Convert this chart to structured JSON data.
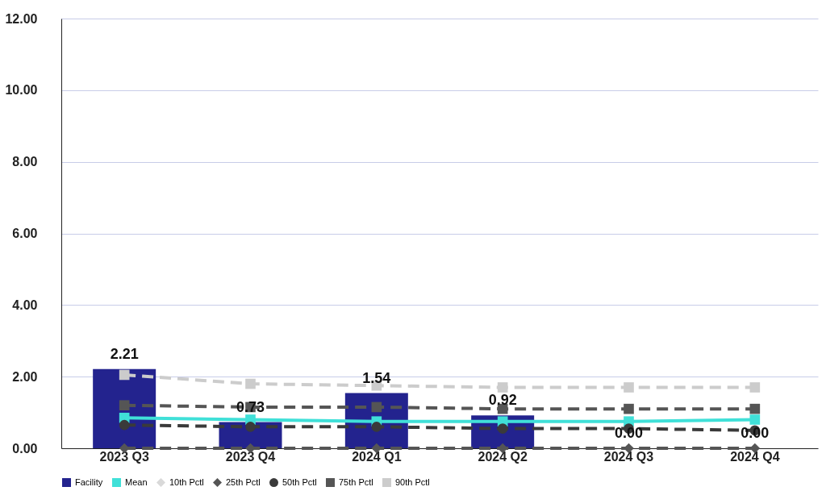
{
  "chart_data": {
    "type": "bar",
    "categories": [
      "2023 Q3",
      "2023 Q4",
      "2024 Q1",
      "2024 Q2",
      "2024 Q3",
      "2024 Q4"
    ],
    "series": [
      {
        "name": "Facility",
        "color": "#23238e",
        "values": [
          2.21,
          0.73,
          1.54,
          0.92,
          0.0,
          0.0
        ]
      },
      {
        "name": "Mean",
        "type": "line",
        "color": "#40e0d8",
        "marker": "square",
        "line_style": "solid",
        "values": [
          0.85,
          0.8,
          0.75,
          0.75,
          0.75,
          0.8
        ]
      },
      {
        "name": "10th Pctl",
        "type": "line",
        "color": "#d9d9d9",
        "marker": "diamond",
        "values": [
          null,
          null,
          null,
          null,
          null,
          null
        ]
      },
      {
        "name": "25th Pctl",
        "type": "line",
        "color": "#555555",
        "marker": "diamond",
        "line_style": "dashed",
        "values": [
          0,
          0,
          0,
          0,
          0,
          0
        ]
      },
      {
        "name": "50th Pctl",
        "type": "line",
        "color": "#3a3a3a",
        "marker": "circle",
        "line_style": "dashed",
        "values": [
          0.65,
          0.6,
          0.6,
          0.55,
          0.55,
          0.5
        ]
      },
      {
        "name": "75th Pctl",
        "type": "line",
        "color": "#555555",
        "marker": "square",
        "line_style": "dashed",
        "values": [
          1.2,
          1.15,
          1.15,
          1.1,
          1.1,
          1.1
        ]
      },
      {
        "name": "90th Pctl",
        "type": "line",
        "color": "#cccccc",
        "marker": "square",
        "line_style": "dashed",
        "values": [
          2.05,
          1.8,
          1.75,
          1.7,
          1.7,
          1.7
        ]
      }
    ],
    "ylim": [
      0,
      12
    ],
    "yticks": [
      {
        "value": 0,
        "label": "0.00"
      },
      {
        "value": 2,
        "label": "2.00"
      },
      {
        "value": 4,
        "label": "4.00"
      },
      {
        "value": 6,
        "label": "6.00"
      },
      {
        "value": 8,
        "label": "8.00"
      },
      {
        "value": 10,
        "label": "10.00"
      },
      {
        "value": 12,
        "label": "12.00"
      }
    ],
    "value_labels": [
      "2.21",
      "0.73",
      "1.54",
      "0.92",
      "0.00",
      "0.00"
    ],
    "grid": "y",
    "legend": "bottom"
  }
}
